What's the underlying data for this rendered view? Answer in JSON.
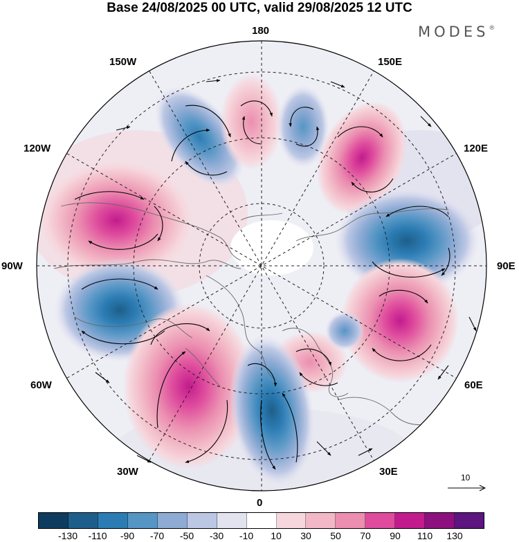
{
  "header": {
    "title": "Base 24/08/2025 00 UTC, valid 29/08/2025 12 UTC",
    "brand": "MODES",
    "brand_mark": "®"
  },
  "map": {
    "projection": "north-polar-stereographic",
    "longitude_labels": {
      "top": "180",
      "bottom": "0",
      "left": "90W",
      "right": "90E",
      "upper_left_1": "150W",
      "upper_left_2": "120W",
      "upper_right_1": "150E",
      "upper_right_2": "120E",
      "lower_left_1": "60W",
      "lower_left_2": "30W",
      "lower_right_1": "60E",
      "lower_right_2": "30E"
    },
    "anomaly_centers": [
      {
        "sign": "negative",
        "value": -70,
        "region": "Aleutians / 160W"
      },
      {
        "sign": "positive",
        "value": 60,
        "region": "Chukchi / 175E"
      },
      {
        "sign": "negative",
        "value": -50,
        "region": "East Siberian Sea / 170E"
      },
      {
        "sign": "positive",
        "value": 90,
        "region": "NE Siberia / 140E"
      },
      {
        "sign": "positive",
        "value": 100,
        "region": "Western Canada / 110W"
      },
      {
        "sign": "negative",
        "value": -110,
        "region": "Central Siberia / 95E"
      },
      {
        "sign": "negative",
        "value": -110,
        "region": "Eastern Canada / 75W"
      },
      {
        "sign": "positive",
        "value": 90,
        "region": "Western Siberia / 70E"
      },
      {
        "sign": "positive",
        "value": 50,
        "region": "Scandinavia / 40E"
      },
      {
        "sign": "positive",
        "value": 90,
        "region": "North Atlantic / 40W"
      },
      {
        "sign": "negative",
        "value": -100,
        "region": "NE Atlantic / 10W"
      }
    ]
  },
  "vector_scale": {
    "label": "10"
  },
  "colorbar": {
    "colors": [
      "#0d3c5e",
      "#1d5f8a",
      "#2c7cb4",
      "#5596c5",
      "#8eabd4",
      "#bcc7e4",
      "#e3e3f0",
      "#ffffff",
      "#f6d7dd",
      "#f2b8c6",
      "#eb8eb0",
      "#df4c9d",
      "#c21b8d",
      "#8c117e",
      "#5d1580"
    ],
    "tick_labels": [
      "-130",
      "-110",
      "-90",
      "-70",
      "-50",
      "-30",
      "-10",
      "10",
      "30",
      "50",
      "70",
      "90",
      "110",
      "130"
    ]
  }
}
